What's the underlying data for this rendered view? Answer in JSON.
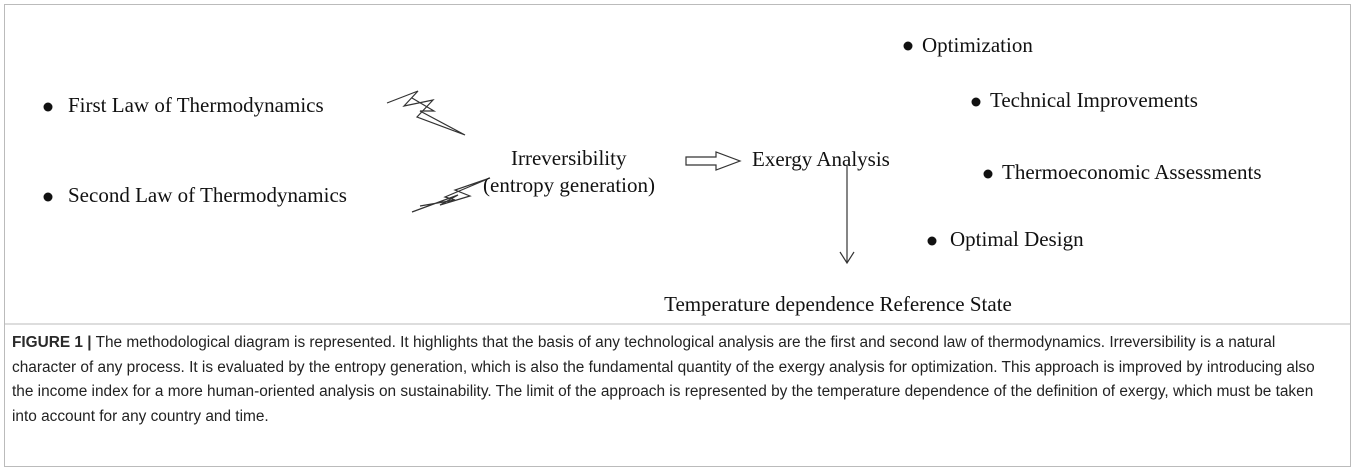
{
  "nodes": [
    {
      "label": "First Law of Thermodynamics"
    },
    {
      "label": "Second Law of Thermodynamics"
    },
    {
      "label": "Irreversibility"
    },
    {
      "label": "(entropy generation)"
    },
    {
      "label": "Exergy Analysis"
    },
    {
      "label": "Temperature dependence Reference State"
    },
    {
      "label": "Optimization"
    },
    {
      "label": "Technical Improvements"
    },
    {
      "label": "Thermoeconomic Assessments"
    },
    {
      "label": "Optimal Design"
    }
  ],
  "caption": {
    "label": "FIGURE 1 |",
    "text": "The methodological diagram is represented. It highlights that the basis of any technological analysis are the first and second law of thermodynamics. Irreversibility is a natural character of any process. It is evaluated by the entropy generation, which is also the fundamental quantity of the exergy analysis for optimization. This approach is improved by introducing also the income index for a more human-oriented analysis on sustainability. The limit of the approach is represented by the temperature dependence of the definition of exergy, which must be taken into account for any country and time."
  }
}
